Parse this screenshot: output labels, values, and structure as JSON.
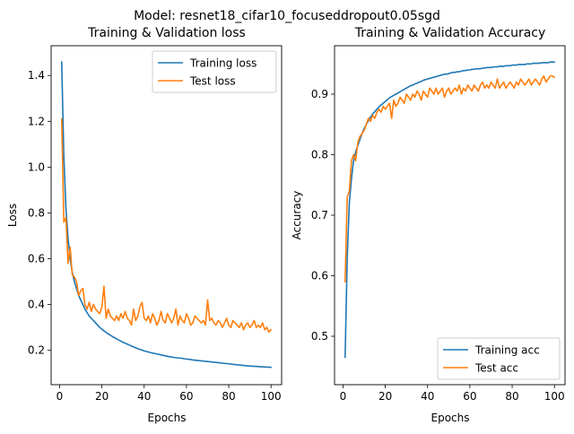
{
  "figure": {
    "suptitle": "Model: resnet18_cifar10_focuseddropout0.05sgd"
  },
  "chart_data": [
    {
      "type": "line",
      "title": "Training & Validation loss",
      "xlabel": "Epochs",
      "ylabel": "Loss",
      "xlim": [
        -4,
        105
      ],
      "ylim": [
        0.05,
        1.53
      ],
      "xticks": [
        0,
        20,
        40,
        60,
        80,
        100
      ],
      "yticks": [
        0.2,
        0.4,
        0.6,
        0.8,
        1.0,
        1.2,
        1.4
      ],
      "ytick_labels": [
        "0.2",
        "0.4",
        "0.6",
        "0.8",
        "1.0",
        "1.2",
        "1.4"
      ],
      "legend_position": "upper-right",
      "grid": false,
      "series": [
        {
          "name": "Training loss",
          "color": "#1f77b4",
          "x": [
            1,
            2,
            3,
            4,
            5,
            6,
            7,
            8,
            9,
            10,
            11,
            12,
            13,
            14,
            15,
            16,
            17,
            18,
            19,
            20,
            21,
            22,
            23,
            24,
            25,
            26,
            27,
            28,
            29,
            30,
            31,
            32,
            33,
            34,
            35,
            36,
            37,
            38,
            39,
            40,
            41,
            42,
            43,
            44,
            45,
            46,
            47,
            48,
            49,
            50,
            51,
            52,
            53,
            54,
            55,
            56,
            57,
            58,
            59,
            60,
            61,
            62,
            63,
            64,
            65,
            66,
            67,
            68,
            69,
            70,
            71,
            72,
            73,
            74,
            75,
            76,
            77,
            78,
            79,
            80,
            81,
            82,
            83,
            84,
            85,
            86,
            87,
            88,
            89,
            90,
            91,
            92,
            93,
            94,
            95,
            96,
            97,
            98,
            99,
            100
          ],
          "values": [
            1.46,
            1.05,
            0.82,
            0.69,
            0.6,
            0.54,
            0.5,
            0.47,
            0.44,
            0.42,
            0.4,
            0.38,
            0.365,
            0.35,
            0.34,
            0.33,
            0.32,
            0.31,
            0.3,
            0.292,
            0.285,
            0.278,
            0.272,
            0.266,
            0.26,
            0.255,
            0.25,
            0.245,
            0.24,
            0.235,
            0.231,
            0.227,
            0.223,
            0.219,
            0.215,
            0.211,
            0.207,
            0.204,
            0.201,
            0.198,
            0.195,
            0.193,
            0.19,
            0.188,
            0.186,
            0.184,
            0.182,
            0.18,
            0.178,
            0.176,
            0.174,
            0.172,
            0.171,
            0.169,
            0.168,
            0.167,
            0.166,
            0.165,
            0.163,
            0.162,
            0.161,
            0.16,
            0.158,
            0.157,
            0.156,
            0.155,
            0.154,
            0.153,
            0.152,
            0.151,
            0.15,
            0.149,
            0.148,
            0.147,
            0.146,
            0.145,
            0.144,
            0.143,
            0.142,
            0.141,
            0.14,
            0.139,
            0.138,
            0.137,
            0.136,
            0.135,
            0.134,
            0.133,
            0.132,
            0.131,
            0.131,
            0.13,
            0.13,
            0.129,
            0.128,
            0.128,
            0.127,
            0.127,
            0.126,
            0.126
          ]
        },
        {
          "name": "Test loss",
          "color": "#ff7f0e",
          "x": [
            1,
            2,
            3,
            4,
            5,
            6,
            7,
            8,
            9,
            10,
            11,
            12,
            13,
            14,
            15,
            16,
            17,
            18,
            19,
            20,
            21,
            22,
            23,
            24,
            25,
            26,
            27,
            28,
            29,
            30,
            31,
            32,
            33,
            34,
            35,
            36,
            37,
            38,
            39,
            40,
            41,
            42,
            43,
            44,
            45,
            46,
            47,
            48,
            49,
            50,
            51,
            52,
            53,
            54,
            55,
            56,
            57,
            58,
            59,
            60,
            61,
            62,
            63,
            64,
            65,
            66,
            67,
            68,
            69,
            70,
            71,
            72,
            73,
            74,
            75,
            76,
            77,
            78,
            79,
            80,
            81,
            82,
            83,
            84,
            85,
            86,
            87,
            88,
            89,
            90,
            91,
            92,
            93,
            94,
            95,
            96,
            97,
            98,
            99,
            100
          ],
          "values": [
            1.21,
            0.76,
            0.78,
            0.58,
            0.65,
            0.53,
            0.52,
            0.5,
            0.44,
            0.46,
            0.47,
            0.4,
            0.38,
            0.41,
            0.37,
            0.4,
            0.38,
            0.37,
            0.36,
            0.39,
            0.48,
            0.34,
            0.38,
            0.35,
            0.34,
            0.33,
            0.35,
            0.33,
            0.36,
            0.34,
            0.37,
            0.34,
            0.33,
            0.31,
            0.38,
            0.33,
            0.35,
            0.39,
            0.41,
            0.34,
            0.33,
            0.35,
            0.32,
            0.36,
            0.34,
            0.31,
            0.33,
            0.37,
            0.33,
            0.32,
            0.36,
            0.34,
            0.32,
            0.34,
            0.38,
            0.31,
            0.35,
            0.33,
            0.32,
            0.36,
            0.34,
            0.31,
            0.32,
            0.35,
            0.34,
            0.33,
            0.32,
            0.33,
            0.31,
            0.42,
            0.33,
            0.34,
            0.32,
            0.31,
            0.33,
            0.32,
            0.3,
            0.32,
            0.34,
            0.31,
            0.3,
            0.33,
            0.32,
            0.31,
            0.3,
            0.32,
            0.29,
            0.31,
            0.32,
            0.3,
            0.31,
            0.33,
            0.3,
            0.31,
            0.3,
            0.32,
            0.29,
            0.3,
            0.28,
            0.29
          ]
        }
      ]
    },
    {
      "type": "line",
      "title": "Training & Validation Accuracy",
      "xlabel": "Epochs",
      "ylabel": "Accuracy",
      "xlim": [
        -4,
        105
      ],
      "ylim": [
        0.42,
        0.98
      ],
      "xticks": [
        0,
        20,
        40,
        60,
        80,
        100
      ],
      "yticks": [
        0.5,
        0.6,
        0.7,
        0.8,
        0.9
      ],
      "ytick_labels": [
        "0.5",
        "0.6",
        "0.7",
        "0.8",
        "0.9"
      ],
      "legend_position": "lower-right",
      "grid": false,
      "series": [
        {
          "name": "Training acc",
          "color": "#1f77b4",
          "x": [
            1,
            2,
            3,
            4,
            5,
            6,
            7,
            8,
            9,
            10,
            11,
            12,
            13,
            14,
            15,
            16,
            17,
            18,
            19,
            20,
            21,
            22,
            23,
            24,
            25,
            26,
            27,
            28,
            29,
            30,
            31,
            32,
            33,
            34,
            35,
            36,
            37,
            38,
            39,
            40,
            41,
            42,
            43,
            44,
            45,
            46,
            47,
            48,
            49,
            50,
            51,
            52,
            53,
            54,
            55,
            56,
            57,
            58,
            59,
            60,
            61,
            62,
            63,
            64,
            65,
            66,
            67,
            68,
            69,
            70,
            71,
            72,
            73,
            74,
            75,
            76,
            77,
            78,
            79,
            80,
            81,
            82,
            83,
            84,
            85,
            86,
            87,
            88,
            89,
            90,
            91,
            92,
            93,
            94,
            95,
            96,
            97,
            98,
            99,
            100
          ],
          "values": [
            0.465,
            0.63,
            0.72,
            0.76,
            0.79,
            0.805,
            0.815,
            0.825,
            0.835,
            0.843,
            0.85,
            0.856,
            0.862,
            0.867,
            0.871,
            0.875,
            0.879,
            0.882,
            0.885,
            0.888,
            0.891,
            0.894,
            0.896,
            0.898,
            0.9,
            0.902,
            0.904,
            0.906,
            0.908,
            0.91,
            0.912,
            0.914,
            0.915,
            0.917,
            0.918,
            0.92,
            0.921,
            0.923,
            0.924,
            0.925,
            0.926,
            0.927,
            0.928,
            0.929,
            0.93,
            0.931,
            0.932,
            0.933,
            0.933,
            0.934,
            0.935,
            0.936,
            0.936,
            0.937,
            0.937,
            0.938,
            0.939,
            0.939,
            0.94,
            0.94,
            0.941,
            0.941,
            0.942,
            0.942,
            0.942,
            0.943,
            0.943,
            0.944,
            0.944,
            0.944,
            0.945,
            0.945,
            0.945,
            0.946,
            0.946,
            0.946,
            0.947,
            0.947,
            0.947,
            0.948,
            0.948,
            0.948,
            0.949,
            0.949,
            0.949,
            0.949,
            0.95,
            0.95,
            0.95,
            0.951,
            0.951,
            0.951,
            0.951,
            0.952,
            0.952,
            0.952,
            0.952,
            0.953,
            0.953,
            0.953
          ]
        },
        {
          "name": "Test acc",
          "color": "#ff7f0e",
          "x": [
            1,
            2,
            3,
            4,
            5,
            6,
            7,
            8,
            9,
            10,
            11,
            12,
            13,
            14,
            15,
            16,
            17,
            18,
            19,
            20,
            21,
            22,
            23,
            24,
            25,
            26,
            27,
            28,
            29,
            30,
            31,
            32,
            33,
            34,
            35,
            36,
            37,
            38,
            39,
            40,
            41,
            42,
            43,
            44,
            45,
            46,
            47,
            48,
            49,
            50,
            51,
            52,
            53,
            54,
            55,
            56,
            57,
            58,
            59,
            60,
            61,
            62,
            63,
            64,
            65,
            66,
            67,
            68,
            69,
            70,
            71,
            72,
            73,
            74,
            75,
            76,
            77,
            78,
            79,
            80,
            81,
            82,
            83,
            84,
            85,
            86,
            87,
            88,
            89,
            90,
            91,
            92,
            93,
            94,
            95,
            96,
            97,
            98,
            99,
            100
          ],
          "values": [
            0.59,
            0.73,
            0.74,
            0.79,
            0.8,
            0.79,
            0.82,
            0.83,
            0.835,
            0.84,
            0.85,
            0.86,
            0.855,
            0.865,
            0.86,
            0.87,
            0.875,
            0.87,
            0.88,
            0.875,
            0.88,
            0.885,
            0.86,
            0.89,
            0.88,
            0.885,
            0.895,
            0.89,
            0.885,
            0.9,
            0.895,
            0.89,
            0.9,
            0.895,
            0.905,
            0.9,
            0.89,
            0.905,
            0.9,
            0.895,
            0.91,
            0.905,
            0.9,
            0.91,
            0.9,
            0.905,
            0.91,
            0.895,
            0.905,
            0.91,
            0.9,
            0.905,
            0.91,
            0.905,
            0.915,
            0.9,
            0.91,
            0.905,
            0.915,
            0.91,
            0.905,
            0.915,
            0.91,
            0.905,
            0.915,
            0.92,
            0.91,
            0.915,
            0.91,
            0.92,
            0.915,
            0.91,
            0.925,
            0.91,
            0.915,
            0.92,
            0.91,
            0.915,
            0.92,
            0.915,
            0.91,
            0.92,
            0.915,
            0.925,
            0.92,
            0.915,
            0.92,
            0.925,
            0.915,
            0.92,
            0.925,
            0.92,
            0.915,
            0.925,
            0.93,
            0.92,
            0.925,
            0.93,
            0.93,
            0.928
          ]
        }
      ]
    }
  ]
}
